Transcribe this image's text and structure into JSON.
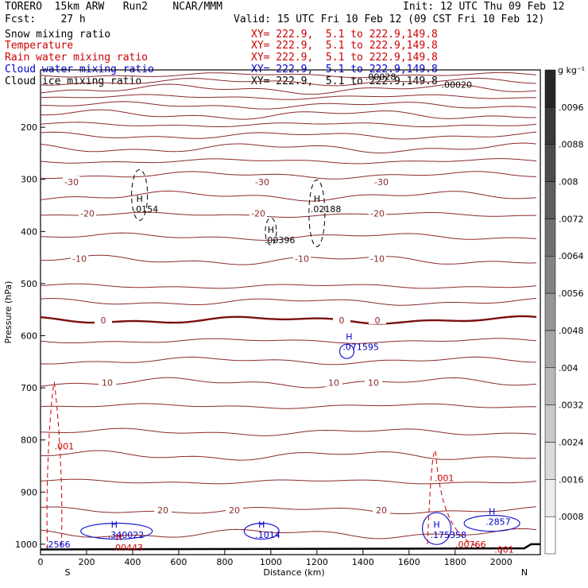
{
  "header": {
    "model": "TORERO  15km ARW   Run2    NCAR/MMM",
    "init": "Init: 12 UTC Thu 09 Feb 12",
    "fcst": "Fcst:    27 h",
    "valid": "Valid: 15 UTC Fri 10 Feb 12 (09 CST Fri 10 Feb 12)"
  },
  "legend": [
    {
      "name": "Snow mixing ratio",
      "color": "#000000",
      "xy": ""
    },
    {
      "name": "Temperature",
      "color": "#cc0000",
      "xy": "XY= 222.9,  5.1 to 222.9,149.8"
    },
    {
      "name": "Rain water mixing ratio",
      "color": "#cc0000",
      "xy": "XY= 222.9,  5.1 to 222.9,149.8"
    },
    {
      "name": "Cloud water mixing ratio",
      "color": "#0000cc",
      "xy": "XY= 222.9,  5.1 to 222.9,149.8"
    },
    {
      "name": "Cloud ice mixing ratio",
      "color": "#000000",
      "xy": "XY= 222.9,  5.1 to 222.9,149.8"
    }
  ],
  "snow_xy": "XY= 222.9,  5.1 to 222.9,149.8",
  "chart_data": {
    "type": "line",
    "xlabel": "Distance (km)",
    "ylabel": "Pressure (hPa)",
    "xlim": [
      0,
      2170
    ],
    "ylim": [
      1020,
      90
    ],
    "x_ticks": [
      0,
      200,
      400,
      600,
      800,
      1000,
      1200,
      1400,
      1600,
      1800,
      2000
    ],
    "y_ticks": [
      200,
      300,
      400,
      500,
      600,
      700,
      800,
      900,
      1000
    ],
    "x_end_labels": {
      "left": "S",
      "right": "N"
    },
    "colorbar": {
      "unit": "g kg⁻¹",
      "ticks": [
        ".0008",
        ".0016",
        ".0024",
        ".0032",
        ".004",
        ".0048",
        ".0056",
        ".0064",
        ".0072",
        ".008",
        ".0088",
        ".0096"
      ]
    },
    "temperature_contours": [
      {
        "label": "-30",
        "p": 305
      },
      {
        "label": "-20",
        "p": 365
      },
      {
        "label": "-10",
        "p": 452
      },
      {
        "label": "0",
        "p": 570
      },
      {
        "label": "10",
        "p": 690
      },
      {
        "label": "20",
        "p": 935
      }
    ],
    "maxima": [
      {
        "mark": "H",
        "value": ".0154",
        "x": 430,
        "p": 355,
        "field": "snow"
      },
      {
        "mark": "H",
        "value": ".02188",
        "x": 1200,
        "p": 355,
        "field": "snow"
      },
      {
        "mark": "H",
        "value": ".00396",
        "x": 1000,
        "p": 415,
        "field": "snow"
      },
      {
        "mark": "H",
        "value": ".071595",
        "x": 1340,
        "p": 620,
        "field": "cloud-water"
      },
      {
        "mark": "H",
        "value": ".340022",
        "x": 320,
        "p": 980,
        "field": "cloud-water"
      },
      {
        "mark": "H",
        "value": ".1014",
        "x": 960,
        "p": 980,
        "field": "cloud-water"
      },
      {
        "mark": "H",
        "value": ".175358",
        "x": 1720,
        "p": 980,
        "field": "cloud-water"
      },
      {
        "mark": "H",
        "value": ".2857",
        "x": 1960,
        "p": 955,
        "field": "cloud-water"
      },
      {
        "mark": "H",
        "value": ".00443",
        "x": 340,
        "p": 1005,
        "field": "rain"
      }
    ],
    "annotations": [
      {
        "text": ".001",
        "x": 40,
        "p": 812,
        "color": "#cc0000"
      },
      {
        "text": ".001",
        "x": 1690,
        "p": 873,
        "color": "#cc0000"
      },
      {
        "text": ".00766",
        "x": 1780,
        "p": 1000,
        "color": "#cc0000"
      },
      {
        "text": ".001",
        "x": 1950,
        "p": 1010,
        "color": "#cc0000"
      },
      {
        "text": ".2566",
        "x": 0,
        "p": 1000,
        "color": "#0000cc"
      },
      {
        "text": ".00028",
        "x": 1390,
        "p": 103,
        "color": "#000000"
      },
      {
        "text": ".00020",
        "x": 1720,
        "p": 118,
        "color": "#000000"
      }
    ]
  }
}
